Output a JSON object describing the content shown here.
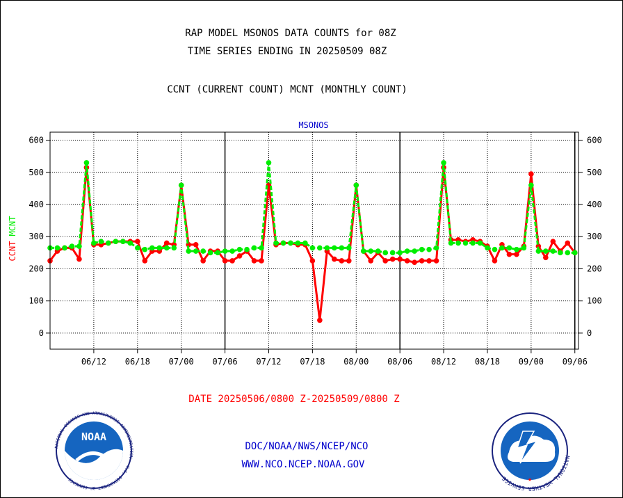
{
  "header": {
    "title_line1": "RAP MODEL MSONOS DATA COUNTS for 08Z",
    "title_line2": "TIME SERIES ENDING IN 20250509 08Z",
    "subtitle": "CCNT (CURRENT COUNT) MCNT (MONTHLY COUNT)"
  },
  "footer": {
    "date_range": "DATE 20250506/0800 Z-20250509/0800 Z",
    "org_path": "DOC/NOAA/NWS/NCEP/NCO",
    "website": "WWW.NCO.NCEP.NOAA.GOV",
    "noaa_logo_text": "NOAA",
    "noaa_ring_text": "NATIONAL OCEANIC AND ATMOSPHERIC ADMINISTRATION · U.S. DEPARTMENT OF COMMERCE",
    "nws_ring_text": "NATIONAL WEATHER SERVICE"
  },
  "colors": {
    "ccnt": "#ff0000",
    "mcnt": "#00ee00",
    "panel_title": "#0000cc",
    "footer_blue": "#0000cc",
    "footer_red": "#ff0000"
  },
  "chart_data": {
    "type": "line",
    "title": "MSONOS",
    "ylabel_ccnt": "CCNT",
    "ylabel_mcnt": "MCNT",
    "ylim": [
      -50,
      625
    ],
    "yticks": [
      0,
      100,
      200,
      300,
      400,
      500,
      600
    ],
    "x_tick_labels": [
      "06/12",
      "06/18",
      "07/00",
      "07/06",
      "07/12",
      "07/18",
      "08/00",
      "08/06",
      "08/12",
      "08/18",
      "09/00",
      "09/06"
    ],
    "x_tick_positions": [
      6,
      12,
      18,
      24,
      30,
      36,
      42,
      48,
      54,
      60,
      66,
      72
    ],
    "xlim": [
      0,
      72.5
    ],
    "day_boundaries": [
      24,
      48,
      72
    ],
    "grid": true,
    "series": [
      {
        "name": "CCNT",
        "x": [
          0,
          1,
          2,
          3,
          4,
          5,
          6,
          7,
          8,
          9,
          10,
          11,
          12,
          13,
          14,
          15,
          16,
          17,
          18,
          19,
          20,
          21,
          22,
          23,
          24,
          25,
          26,
          27,
          28,
          29,
          30,
          31,
          32,
          33,
          34,
          35,
          36,
          37,
          38,
          39,
          40,
          41,
          42,
          43,
          44,
          45,
          46,
          47,
          48,
          49,
          50,
          51,
          52,
          53,
          54,
          55,
          56,
          57,
          58,
          59,
          60,
          61,
          62,
          63,
          64,
          65,
          66,
          67,
          68,
          69,
          70,
          71,
          72,
          73
        ],
        "values": [
          225,
          255,
          265,
          265,
          230,
          515,
          275,
          275,
          280,
          285,
          285,
          285,
          285,
          225,
          255,
          255,
          280,
          275,
          460,
          275,
          275,
          225,
          255,
          255,
          225,
          225,
          240,
          255,
          225,
          225,
          460,
          275,
          280,
          280,
          275,
          275,
          225,
          40,
          255,
          230,
          225,
          225,
          460,
          255,
          225,
          250,
          225,
          230,
          230,
          225,
          220,
          225,
          225,
          225,
          515,
          290,
          290,
          285,
          290,
          285,
          270,
          225,
          275,
          245,
          245,
          270,
          495,
          270,
          235,
          285,
          255,
          280,
          250,
          285
        ]
      },
      {
        "name": "MCNT",
        "x": [
          0,
          1,
          2,
          3,
          4,
          5,
          6,
          7,
          8,
          9,
          10,
          11,
          12,
          13,
          14,
          15,
          16,
          17,
          18,
          19,
          20,
          21,
          22,
          23,
          24,
          25,
          26,
          27,
          28,
          29,
          30,
          31,
          32,
          33,
          34,
          35,
          36,
          37,
          38,
          39,
          40,
          41,
          42,
          43,
          44,
          45,
          46,
          47,
          48,
          49,
          50,
          51,
          52,
          53,
          54,
          55,
          56,
          57,
          58,
          59,
          60,
          61,
          62,
          63,
          64,
          65,
          66,
          67,
          68,
          69,
          70,
          71,
          72,
          73
        ],
        "values": [
          265,
          265,
          265,
          270,
          270,
          530,
          280,
          285,
          280,
          285,
          285,
          280,
          265,
          260,
          265,
          265,
          265,
          265,
          460,
          255,
          255,
          255,
          250,
          250,
          255,
          255,
          260,
          260,
          265,
          265,
          530,
          280,
          280,
          280,
          280,
          280,
          265,
          265,
          265,
          265,
          265,
          265,
          460,
          255,
          255,
          255,
          250,
          250,
          250,
          255,
          255,
          260,
          260,
          265,
          530,
          280,
          280,
          280,
          280,
          280,
          265,
          260,
          265,
          265,
          260,
          265,
          460,
          255,
          255,
          255,
          250,
          250,
          250,
          260
        ]
      }
    ]
  }
}
